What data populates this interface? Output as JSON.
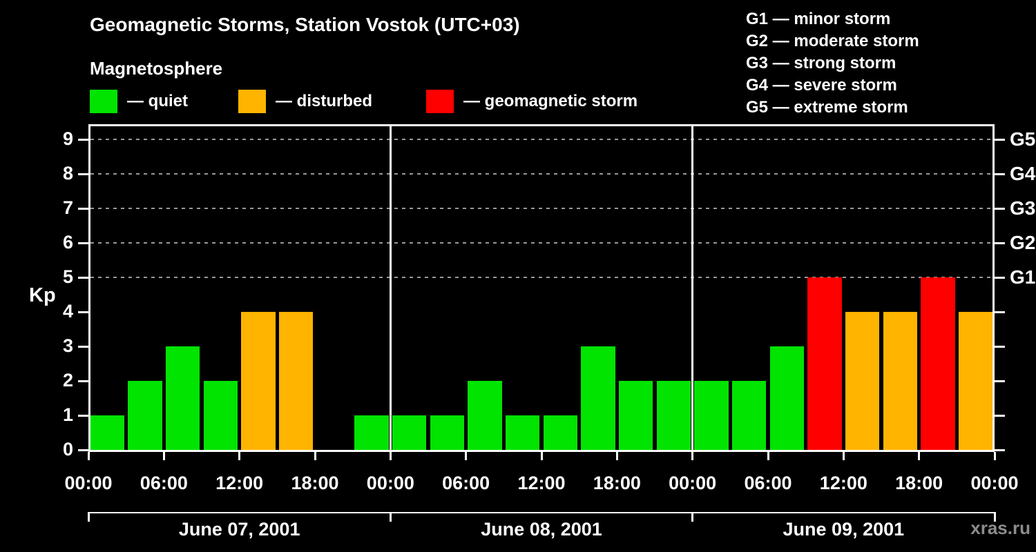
{
  "title": "Geomagnetic Storms, Station Vostok (UTC+03)",
  "legend": {
    "heading": "Magnetosphere",
    "items": [
      {
        "key": "quiet",
        "label": "— quiet",
        "color": "#00e400"
      },
      {
        "key": "disturbed",
        "label": "— disturbed",
        "color": "#ffb400"
      },
      {
        "key": "storm",
        "label": "— geomagnetic storm",
        "color": "#ff0000"
      }
    ]
  },
  "storm_scale": [
    "G1 — minor storm",
    "G2 — moderate storm",
    "G3 — strong storm",
    "G4 — severe storm",
    "G5 — extreme storm"
  ],
  "watermark": "xras.ru",
  "chart_data": {
    "type": "bar",
    "title": "Geomagnetic Storms, Station Vostok (UTC+03)",
    "ylabel": "Kp",
    "ylim": [
      0,
      9.5
    ],
    "yticks": [
      0,
      1,
      2,
      3,
      4,
      5,
      6,
      7,
      8,
      9
    ],
    "gridlines_at": [
      5,
      6,
      7,
      8,
      9
    ],
    "grid": "dashed-horizontal",
    "legend_position": "top-left",
    "right_axis": [
      {
        "kp": 5,
        "label": "G1"
      },
      {
        "kp": 6,
        "label": "G2"
      },
      {
        "kp": 7,
        "label": "G3"
      },
      {
        "kp": 8,
        "label": "G4"
      },
      {
        "kp": 9,
        "label": "G5"
      }
    ],
    "time_ticks": [
      "00:00",
      "06:00",
      "12:00",
      "18:00"
    ],
    "final_time_tick": "00:00",
    "bar_interval_hours": 3,
    "quiet_max": 3,
    "disturbed_max": 4,
    "colors": {
      "quiet": "#00e400",
      "disturbed": "#ffb400",
      "storm": "#ff0000"
    },
    "days": [
      {
        "date": "June 07, 2001",
        "values": [
          1,
          2,
          3,
          2,
          4,
          4,
          0,
          1
        ]
      },
      {
        "date": "June 08, 2001",
        "values": [
          1,
          1,
          2,
          1,
          1,
          3,
          2,
          2
        ]
      },
      {
        "date": "June 09, 2001",
        "values": [
          2,
          2,
          3,
          5,
          4,
          4,
          5,
          4
        ]
      }
    ]
  }
}
